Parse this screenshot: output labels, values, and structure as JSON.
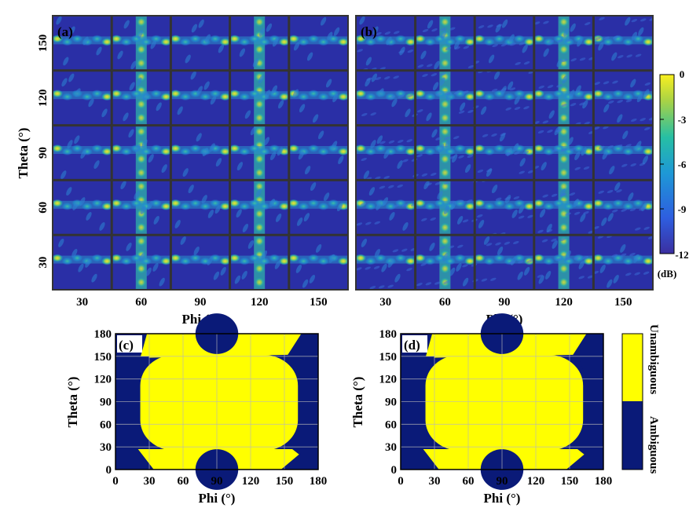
{
  "colors": {
    "bg_dark": "#2a2fa6",
    "fringe": "#37b6b4",
    "peak": "#f3e02c",
    "grid": "#333333",
    "ambiguous": "#0a1a78",
    "unambiguous": "#ffff00",
    "map_grid": "#b8b8b8"
  },
  "chart_data": [
    {
      "id": "a",
      "type": "heatmap",
      "panel_label": "(a)",
      "title": "",
      "xlabel": "Phi (°)",
      "ylabel": "Theta (°)",
      "xticks": [
        30,
        60,
        90,
        120,
        150
      ],
      "yticks": [
        30,
        60,
        90,
        120,
        150
      ],
      "xlim": [
        15,
        165
      ],
      "ylim": [
        15,
        165
      ],
      "grid_rows": 5,
      "grid_cols": 5,
      "colorbar": {
        "min": -12,
        "max": 0,
        "ticks": [
          0,
          -3,
          -6,
          -9,
          -12
        ],
        "unit": "(dB)"
      }
    },
    {
      "id": "b",
      "type": "heatmap",
      "panel_label": "(b)",
      "title": "",
      "xlabel": "Phi (°)",
      "ylabel": "",
      "xticks": [
        30,
        60,
        90,
        120,
        150
      ],
      "yticks": [],
      "xlim": [
        15,
        165
      ],
      "ylim": [
        15,
        165
      ],
      "grid_rows": 5,
      "grid_cols": 5,
      "colorbar": {
        "min": -12,
        "max": 0,
        "ticks": [
          0,
          -3,
          -6,
          -9,
          -12
        ],
        "unit": "(dB)"
      }
    },
    {
      "id": "c",
      "type": "heatmap",
      "panel_label": "(c)",
      "xlabel": "Phi (°)",
      "ylabel": "Theta (°)",
      "xticks": [
        0,
        30,
        60,
        90,
        120,
        150,
        180
      ],
      "yticks": [
        0,
        30,
        60,
        90,
        120,
        150,
        180
      ],
      "xlim": [
        0,
        180
      ],
      "ylim": [
        0,
        180
      ],
      "categories": [
        "Ambiguous",
        "Unambiguous"
      ],
      "unambiguous_region": {
        "main_blob": {
          "phi_min": 22,
          "phi_max": 162,
          "theta_min": 25,
          "theta_max": 152
        },
        "top_band": {
          "phi_min": 28,
          "phi_max": 165,
          "theta_min": 152,
          "theta_max": 180
        },
        "bottom_band": {
          "phi_min": 20,
          "phi_max": 157,
          "theta_min": 0,
          "theta_max": 27
        },
        "notches": [
          {
            "phi_center": 90,
            "theta_center": 180,
            "radius": 19
          },
          {
            "phi_center": 90,
            "theta_center": 0,
            "radius": 19
          }
        ]
      }
    },
    {
      "id": "d",
      "type": "heatmap",
      "panel_label": "(d)",
      "xlabel": "Phi (°)",
      "ylabel": "Theta (°)",
      "xticks": [
        0,
        30,
        60,
        90,
        120,
        150,
        180
      ],
      "yticks": [
        0,
        30,
        60,
        90,
        120,
        150,
        180
      ],
      "xlim": [
        0,
        180
      ],
      "ylim": [
        0,
        180
      ],
      "categories": [
        "Ambiguous",
        "Unambiguous"
      ],
      "unambiguous_region": {
        "main_blob": {
          "phi_min": 22,
          "phi_max": 162,
          "theta_min": 25,
          "theta_max": 152
        },
        "top_band": {
          "phi_min": 28,
          "phi_max": 165,
          "theta_min": 152,
          "theta_max": 180
        },
        "bottom_band": {
          "phi_min": 20,
          "phi_max": 157,
          "theta_min": 0,
          "theta_max": 27
        },
        "notches": [
          {
            "phi_center": 90,
            "theta_center": 180,
            "radius": 19
          },
          {
            "phi_center": 90,
            "theta_center": 0,
            "radius": 19
          }
        ]
      }
    }
  ],
  "legend": {
    "labels": [
      "Unambiguous",
      "Ambiguous"
    ]
  }
}
